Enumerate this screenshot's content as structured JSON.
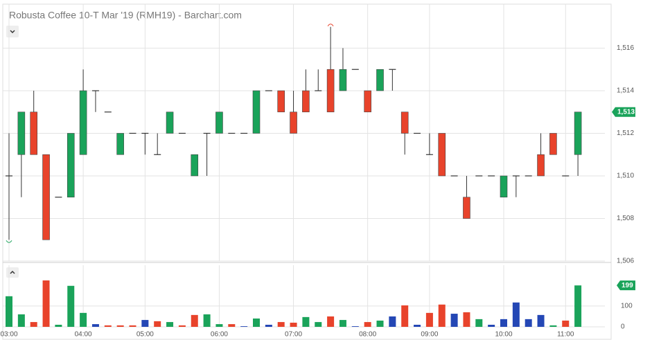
{
  "chart_data": {
    "type": "candlestick",
    "title": "Robusta Coffee 10-T Mar '19 (RMH19) - Barchart.com",
    "categories": [
      "03:00",
      null,
      null,
      null,
      null,
      null,
      "04:00",
      null,
      null,
      null,
      null,
      "05:00",
      null,
      null,
      null,
      null,
      null,
      "06:00",
      null,
      null,
      null,
      null,
      null,
      "07:00",
      null,
      null,
      null,
      null,
      null,
      "08:00",
      null,
      null,
      null,
      null,
      "09:00",
      null,
      null,
      null,
      null,
      null,
      "10:00",
      null,
      null,
      null,
      null,
      "11:00",
      null
    ],
    "open": [
      1510,
      1511,
      1513,
      1511,
      1509,
      1509,
      1511,
      1514,
      1513,
      1511,
      1512,
      1512,
      1511,
      1512,
      1512,
      1510,
      1512,
      1512,
      1512,
      1512,
      1512,
      1514,
      1514,
      1513,
      1514,
      1514,
      1515,
      1514,
      1515,
      1514,
      1514,
      1515,
      1513,
      1512,
      1511,
      1512,
      1510,
      1509,
      1510,
      1510,
      1509,
      1510,
      1510,
      1511,
      1512,
      1510,
      1511
    ],
    "high": [
      1512,
      1513,
      1514,
      1511,
      1509,
      1512,
      1515,
      1514,
      1513,
      1512,
      1512,
      1512,
      1512,
      1513,
      1512,
      1511,
      1512,
      1513,
      1512,
      1512,
      1514,
      1514,
      1514,
      1514,
      1515,
      1515,
      1517,
      1516,
      1515,
      1514,
      1515,
      1515,
      1513,
      1512,
      1512,
      1512,
      1510,
      1510,
      1510,
      1510,
      1510,
      1510,
      1510,
      1512,
      1512,
      1510,
      1513
    ],
    "low": [
      1507,
      1509,
      1511,
      1507,
      1509,
      1509,
      1511,
      1513,
      1513,
      1511,
      1512,
      1511,
      1511,
      1512,
      1512,
      1510,
      1510,
      1512,
      1512,
      1512,
      1512,
      1514,
      1513,
      1512,
      1513,
      1514,
      1513,
      1514,
      1515,
      1513,
      1514,
      1514,
      1511,
      1512,
      1511,
      1510,
      1510,
      1508,
      1510,
      1510,
      1509,
      1509,
      1510,
      1510,
      1511,
      1510,
      1510
    ],
    "close": [
      1510,
      1513,
      1511,
      1507,
      1509,
      1512,
      1514,
      1514,
      1513,
      1512,
      1512,
      1512,
      1511,
      1513,
      1512,
      1511,
      1512,
      1513,
      1512,
      1512,
      1514,
      1514,
      1513,
      1512,
      1513,
      1514,
      1513,
      1515,
      1515,
      1513,
      1515,
      1515,
      1512,
      1512,
      1511,
      1510,
      1510,
      1508,
      1510,
      1510,
      1510,
      1510,
      1510,
      1510,
      1511,
      1510,
      1513
    ],
    "up_color": "#1aa35a",
    "down_color": "#e8432b",
    "doji_color": "#333333",
    "ylim": [
      1506,
      1518
    ],
    "yticks": [
      {
        "value": 1506,
        "label": "1,506"
      },
      {
        "value": 1508,
        "label": "1,508"
      },
      {
        "value": 1510,
        "label": "1,510"
      },
      {
        "value": 1512,
        "label": "1,512"
      },
      {
        "value": 1514,
        "label": "1,514"
      },
      {
        "value": 1516,
        "label": "1,516"
      }
    ],
    "last_price": {
      "value": 1513,
      "label": "1,513"
    },
    "volume": {
      "values": [
        147,
        60,
        23,
        223,
        10,
        197,
        67,
        13,
        7,
        7,
        7,
        33,
        27,
        23,
        7,
        57,
        60,
        13,
        13,
        3,
        40,
        10,
        23,
        20,
        47,
        23,
        50,
        33,
        3,
        23,
        30,
        50,
        103,
        10,
        67,
        107,
        63,
        70,
        37,
        10,
        37,
        117,
        37,
        57,
        7,
        30,
        199
      ],
      "colors": [
        "#1aa35a",
        "#1aa35a",
        "#e8432b",
        "#e8432b",
        "#1aa35a",
        "#1aa35a",
        "#1aa35a",
        "#2447b5",
        "#e8432b",
        "#e8432b",
        "#e8432b",
        "#2447b5",
        "#e8432b",
        "#1aa35a",
        "#e8432b",
        "#e8432b",
        "#1aa35a",
        "#1aa35a",
        "#e8432b",
        "#2447b5",
        "#1aa35a",
        "#2447b5",
        "#e8432b",
        "#e8432b",
        "#1aa35a",
        "#1aa35a",
        "#e8432b",
        "#1aa35a",
        "#2447b5",
        "#e8432b",
        "#1aa35a",
        "#2447b5",
        "#e8432b",
        "#2447b5",
        "#e8432b",
        "#e8432b",
        "#2447b5",
        "#e8432b",
        "#1aa35a",
        "#2447b5",
        "#2447b5",
        "#2447b5",
        "#2447b5",
        "#2447b5",
        "#1aa35a",
        "#e8432b",
        "#1aa35a"
      ],
      "ylim": [
        0,
        296
      ],
      "yticks": [
        0,
        100
      ],
      "last": 199
    },
    "grid": true
  }
}
